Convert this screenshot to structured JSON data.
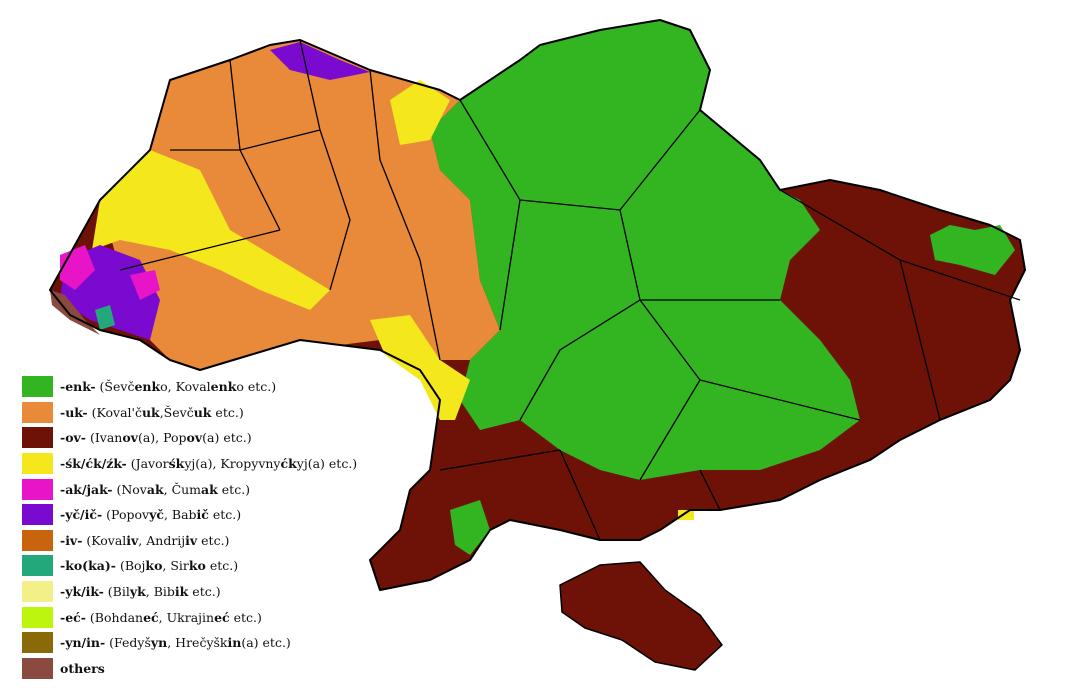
{
  "map": {
    "colors": {
      "enk": "#33b521",
      "uk": "#e88a3a",
      "ov": "#6e1208",
      "sk": "#f4e71b",
      "ak": "#e815c8",
      "yc": "#7a0ad0",
      "iv": "#c8640e",
      "ko": "#22a87a",
      "yk": "#f3f08a",
      "ec": "#bdf50e",
      "yn": "#8a6a08",
      "others": "#8a4a40",
      "border": "#000000",
      "district_border": "#555555"
    }
  },
  "legend": [
    {
      "suffix": "-enk-",
      "color": "#33b521",
      "example": [
        {
          "t": " (Ševč"
        },
        {
          "t": "enk",
          "b": true
        },
        {
          "t": "o, Koval"
        },
        {
          "t": "enk",
          "b": true
        },
        {
          "t": "o etc.)"
        }
      ]
    },
    {
      "suffix": "-uk-",
      "color": "#e88a3a",
      "example": [
        {
          "t": " (Koval'č"
        },
        {
          "t": "uk",
          "b": true
        },
        {
          "t": ",Ševč"
        },
        {
          "t": "uk",
          "b": true
        },
        {
          "t": " etc.)"
        }
      ]
    },
    {
      "suffix": "-ov-",
      "color": "#6e1208",
      "example": [
        {
          "t": " (Ivan"
        },
        {
          "t": "ov",
          "b": true
        },
        {
          "t": "(a), Pop"
        },
        {
          "t": "ov",
          "b": true
        },
        {
          "t": "(a) etc.)"
        }
      ]
    },
    {
      "suffix": "-śk/ćk/źk-",
      "color": "#f4e71b",
      "example": [
        {
          "t": " (Javor"
        },
        {
          "t": "śk",
          "b": true
        },
        {
          "t": "yj(a), Kropyvny"
        },
        {
          "t": "ćk",
          "b": true
        },
        {
          "t": "yj(a) etc.)"
        }
      ]
    },
    {
      "suffix": "-ak/jak-",
      "color": "#e815c8",
      "example": [
        {
          "t": " (Nov"
        },
        {
          "t": "ak",
          "b": true
        },
        {
          "t": ", Čum"
        },
        {
          "t": "ak",
          "b": true
        },
        {
          "t": " etc.)"
        }
      ]
    },
    {
      "suffix": "-yč/ič-",
      "color": "#7a0ad0",
      "example": [
        {
          "t": " (Popov"
        },
        {
          "t": "yč",
          "b": true
        },
        {
          "t": ", Bab"
        },
        {
          "t": "ič",
          "b": true
        },
        {
          "t": " etc.)"
        }
      ]
    },
    {
      "suffix": "-iv-",
      "color": "#c8640e",
      "example": [
        {
          "t": " (Koval"
        },
        {
          "t": "iv",
          "b": true
        },
        {
          "t": ", Andrij"
        },
        {
          "t": "iv",
          "b": true
        },
        {
          "t": " etc.)"
        }
      ]
    },
    {
      "suffix": "-ko(ka)-",
      "color": "#22a87a",
      "example": [
        {
          "t": " (Boj"
        },
        {
          "t": "ko",
          "b": true
        },
        {
          "t": ", Sir"
        },
        {
          "t": "ko",
          "b": true
        },
        {
          "t": " etc.)"
        }
      ]
    },
    {
      "suffix": "-yk/ik-",
      "color": "#f3f08a",
      "example": [
        {
          "t": " (Bil"
        },
        {
          "t": "yk",
          "b": true
        },
        {
          "t": ", Bib"
        },
        {
          "t": "ik",
          "b": true
        },
        {
          "t": " etc.)"
        }
      ]
    },
    {
      "suffix": "-eć-",
      "color": "#bdf50e",
      "example": [
        {
          "t": " (Bohdan"
        },
        {
          "t": "eć",
          "b": true
        },
        {
          "t": ", Ukrajin"
        },
        {
          "t": "eć",
          "b": true
        },
        {
          "t": " etc.)"
        }
      ]
    },
    {
      "suffix": "-yn/in-",
      "color": "#8a6a08",
      "example": [
        {
          "t": " (Fedyš"
        },
        {
          "t": "yn",
          "b": true
        },
        {
          "t": ", Hrečyšk"
        },
        {
          "t": "in",
          "b": true
        },
        {
          "t": "(a) etc.)"
        }
      ]
    },
    {
      "suffix": "others",
      "color": "#8a4a40",
      "example": []
    }
  ]
}
